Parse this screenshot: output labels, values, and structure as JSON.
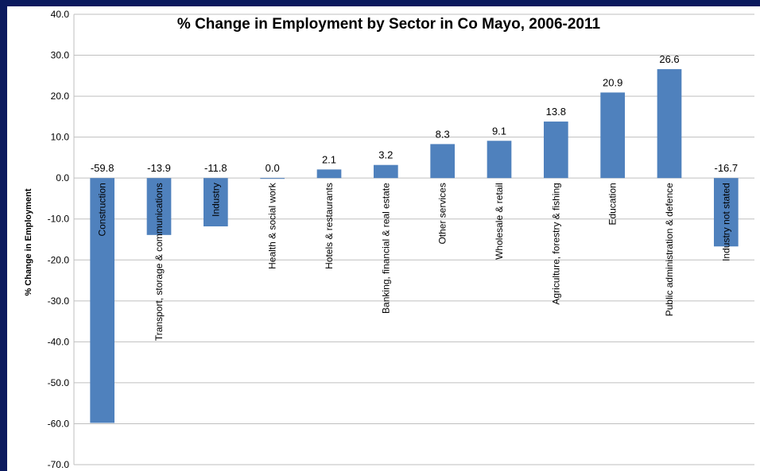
{
  "chart_data": {
    "type": "bar",
    "title": "% Change in Employment by Sector in Co Mayo, 2006-2011",
    "xlabel": "",
    "ylabel": "% Change in Employment",
    "ylim": [
      -70,
      40
    ],
    "ytick_step": 10,
    "grid": true,
    "bar_color": "#4f81bd",
    "categories": [
      "Construction",
      "Transport, storage & communications",
      "Industry",
      "Health & social work",
      "Hotels & restaurants",
      "Banking, financial & real estate",
      "Other services",
      "Wholesale & retail",
      "Agriculture, forestry & fishing",
      "Education",
      "Public administration & defence",
      "Industry not stated"
    ],
    "values": [
      -59.8,
      -13.9,
      -11.8,
      0.0,
      2.1,
      3.2,
      8.3,
      9.1,
      13.8,
      20.9,
      26.6,
      -16.7
    ]
  }
}
